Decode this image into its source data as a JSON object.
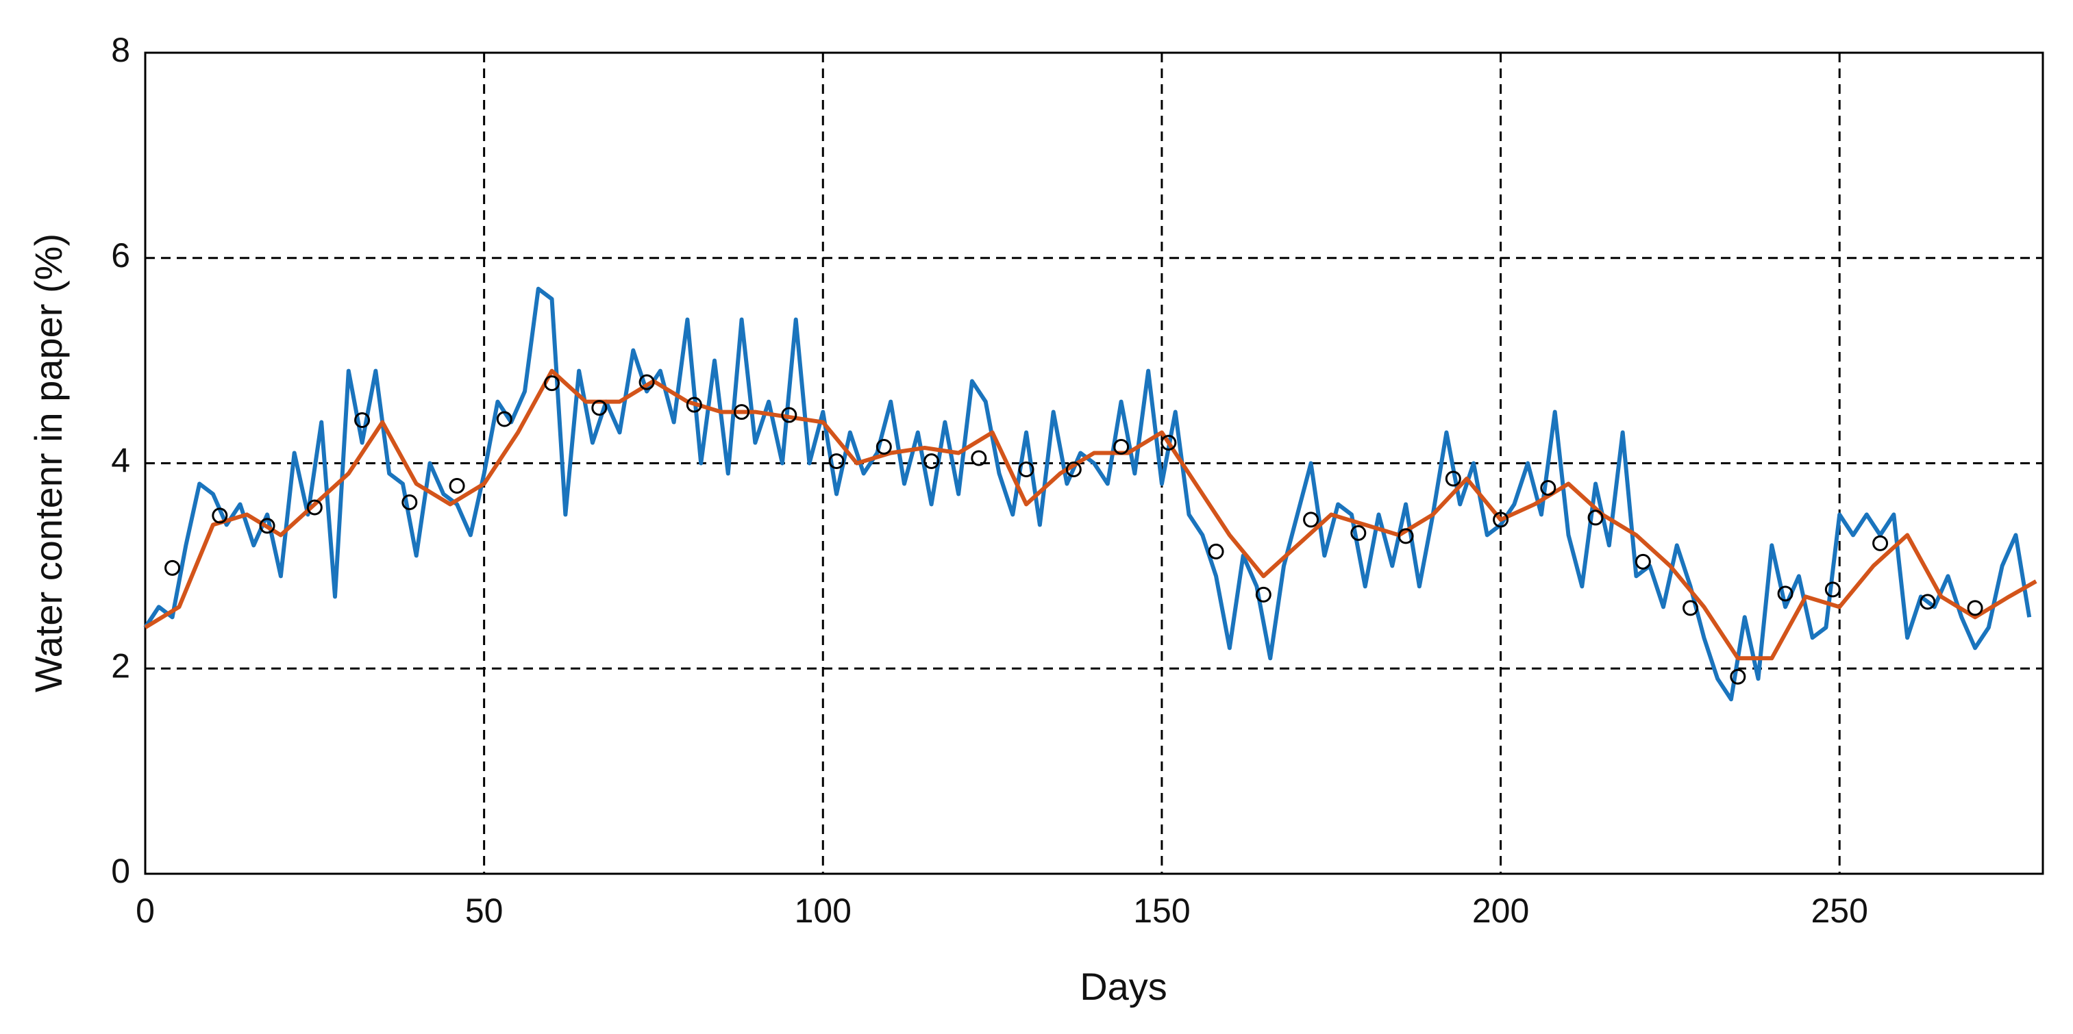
{
  "chart_data": {
    "type": "line",
    "xlabel": "Days",
    "ylabel": "Water contenr in paper (%)",
    "xlim": [
      0,
      280
    ],
    "ylim": [
      0,
      8
    ],
    "xticks": [
      0,
      50,
      100,
      150,
      200,
      250
    ],
    "yticks": [
      0,
      2,
      4,
      6,
      8
    ],
    "grid": true,
    "series": [
      {
        "color": "#1a74bd",
        "line": true,
        "x": [
          0,
          2,
          4,
          6,
          8,
          10,
          12,
          14,
          16,
          18,
          20,
          22,
          24,
          26,
          28,
          30,
          32,
          34,
          36,
          38,
          40,
          42,
          44,
          46,
          48,
          50,
          52,
          54,
          56,
          58,
          60,
          62,
          64,
          66,
          68,
          70,
          72,
          74,
          76,
          78,
          80,
          82,
          84,
          86,
          88,
          90,
          92,
          94,
          96,
          98,
          100,
          102,
          104,
          106,
          108,
          110,
          112,
          114,
          116,
          118,
          120,
          122,
          124,
          126,
          128,
          130,
          132,
          134,
          136,
          138,
          140,
          142,
          144,
          146,
          148,
          150,
          152,
          154,
          156,
          158,
          160,
          162,
          164,
          166,
          168,
          170,
          172,
          174,
          176,
          178,
          180,
          182,
          184,
          186,
          188,
          190,
          192,
          194,
          196,
          198,
          200,
          202,
          204,
          206,
          208,
          210,
          212,
          214,
          216,
          218,
          220,
          222,
          224,
          226,
          228,
          230,
          232,
          234,
          236,
          238,
          240,
          242,
          244,
          246,
          248,
          250,
          252,
          254,
          256,
          258,
          260,
          262,
          264,
          266,
          268,
          270,
          272,
          274,
          276,
          278
        ],
        "values": [
          2.4,
          2.6,
          2.5,
          3.2,
          3.8,
          3.7,
          3.4,
          3.6,
          3.2,
          3.5,
          2.9,
          4.1,
          3.5,
          4.4,
          2.7,
          4.9,
          4.2,
          4.9,
          3.9,
          3.8,
          3.1,
          4.0,
          3.7,
          3.6,
          3.3,
          3.9,
          4.6,
          4.4,
          4.7,
          5.7,
          5.6,
          3.5,
          4.9,
          4.2,
          4.6,
          4.3,
          5.1,
          4.7,
          4.9,
          4.4,
          5.4,
          4.0,
          5.0,
          3.9,
          5.4,
          4.2,
          4.6,
          4.0,
          5.4,
          4.0,
          4.5,
          3.7,
          4.3,
          3.9,
          4.1,
          4.6,
          3.8,
          4.3,
          3.6,
          4.4,
          3.7,
          4.8,
          4.6,
          3.9,
          3.5,
          4.3,
          3.4,
          4.5,
          3.8,
          4.1,
          4.0,
          3.8,
          4.6,
          3.9,
          4.9,
          3.8,
          4.5,
          3.5,
          3.3,
          2.9,
          2.2,
          3.1,
          2.8,
          2.1,
          3.0,
          3.5,
          4.0,
          3.1,
          3.6,
          3.5,
          2.8,
          3.5,
          3.0,
          3.6,
          2.8,
          3.5,
          4.3,
          3.6,
          4.0,
          3.3,
          3.4,
          3.6,
          4.0,
          3.5,
          4.5,
          3.3,
          2.8,
          3.8,
          3.2,
          4.3,
          2.9,
          3.0,
          2.6,
          3.2,
          2.8,
          2.3,
          1.9,
          1.7,
          2.5,
          1.9,
          3.2,
          2.6,
          2.9,
          2.3,
          2.4,
          3.5,
          3.3,
          3.5,
          3.3,
          3.5,
          2.3,
          2.7,
          2.6,
          2.9,
          2.5,
          2.2,
          2.4,
          3.0,
          3.3,
          2.5
        ]
      },
      {
        "color": "#d3541a",
        "line": true,
        "x": [
          0,
          5,
          10,
          15,
          20,
          25,
          30,
          35,
          40,
          45,
          50,
          55,
          60,
          65,
          70,
          75,
          80,
          85,
          90,
          95,
          100,
          105,
          110,
          115,
          120,
          125,
          130,
          135,
          140,
          145,
          150,
          155,
          160,
          165,
          170,
          175,
          180,
          185,
          190,
          195,
          200,
          205,
          210,
          215,
          220,
          225,
          230,
          235,
          240,
          245,
          250,
          255,
          260,
          265,
          270,
          275,
          279
        ],
        "values": [
          2.4,
          2.6,
          3.4,
          3.5,
          3.3,
          3.6,
          3.9,
          4.4,
          3.8,
          3.6,
          3.8,
          4.3,
          4.9,
          4.6,
          4.6,
          4.8,
          4.6,
          4.5,
          4.5,
          4.45,
          4.4,
          4.0,
          4.1,
          4.15,
          4.1,
          4.3,
          3.6,
          3.9,
          4.1,
          4.1,
          4.3,
          3.8,
          3.3,
          2.9,
          3.2,
          3.5,
          3.4,
          3.3,
          3.5,
          3.85,
          3.45,
          3.6,
          3.8,
          3.5,
          3.3,
          3.0,
          2.6,
          2.1,
          2.1,
          2.7,
          2.6,
          3.0,
          3.3,
          2.7,
          2.5,
          2.7,
          2.85
        ]
      },
      {
        "color": "#000000",
        "line": false,
        "marker": "circle",
        "x": [
          4,
          11,
          18,
          25,
          32,
          39,
          46,
          53,
          60,
          67,
          74,
          81,
          88,
          95,
          102,
          109,
          116,
          123,
          130,
          137,
          144,
          151,
          158,
          165,
          172,
          179,
          186,
          193,
          200,
          207,
          214,
          221,
          228,
          235,
          242,
          249,
          256,
          263,
          270
        ],
        "values": [
          2.98,
          3.49,
          3.39,
          3.57,
          4.42,
          3.62,
          3.78,
          4.43,
          4.78,
          4.54,
          4.79,
          4.57,
          4.5,
          4.47,
          4.02,
          4.16,
          4.02,
          4.05,
          3.94,
          3.94,
          4.16,
          4.2,
          3.14,
          2.72,
          3.45,
          3.32,
          3.29,
          3.85,
          3.45,
          3.76,
          3.47,
          3.04,
          2.59,
          1.92,
          2.73,
          2.77,
          3.22,
          2.65,
          2.59
        ]
      }
    ]
  }
}
